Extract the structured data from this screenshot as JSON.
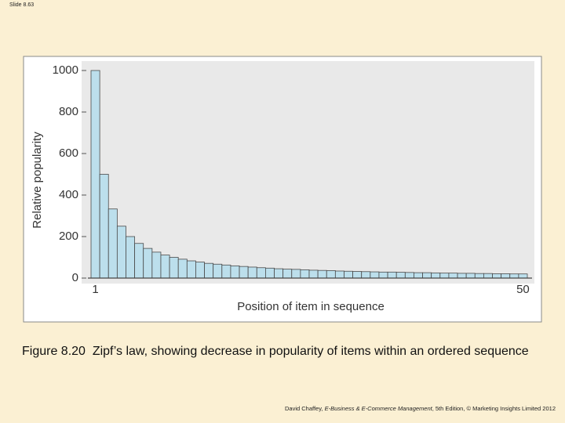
{
  "slide_label": "Slide 8.63",
  "caption": {
    "figure": "Figure 8.20",
    "text": "Zipf’s law, showing decrease in popularity of items within an ordered sequence"
  },
  "footer": {
    "author": "David Chaffey, ",
    "book": "E-Business & E-Commerce Management",
    "rest": ", 5th Edition, © Marketing Insights Limited 2012"
  },
  "chart_data": {
    "type": "bar",
    "xlabel": "Position of item in sequence",
    "ylabel": "Relative popularity",
    "categories": [
      "1",
      null,
      null,
      null,
      null,
      null,
      null,
      null,
      null,
      null,
      null,
      null,
      null,
      null,
      null,
      null,
      null,
      null,
      null,
      null,
      null,
      null,
      null,
      null,
      null,
      null,
      null,
      null,
      null,
      null,
      null,
      null,
      null,
      null,
      null,
      null,
      null,
      null,
      null,
      null,
      null,
      null,
      null,
      null,
      null,
      null,
      null,
      null,
      null,
      "50"
    ],
    "values": [
      1000,
      500,
      333,
      250,
      200,
      167,
      143,
      125,
      111,
      100,
      91,
      83,
      77,
      71,
      67,
      63,
      59,
      56,
      53,
      50,
      48,
      45,
      43,
      42,
      40,
      38,
      37,
      36,
      34,
      33,
      32,
      31,
      30,
      29,
      29,
      28,
      27,
      26,
      26,
      25,
      24,
      24,
      23,
      23,
      22,
      22,
      21,
      21,
      20,
      20
    ],
    "color": "#bcdfec",
    "ylim": [
      0,
      1000
    ],
    "yticks": [
      0,
      200,
      400,
      600,
      800,
      1000
    ]
  }
}
